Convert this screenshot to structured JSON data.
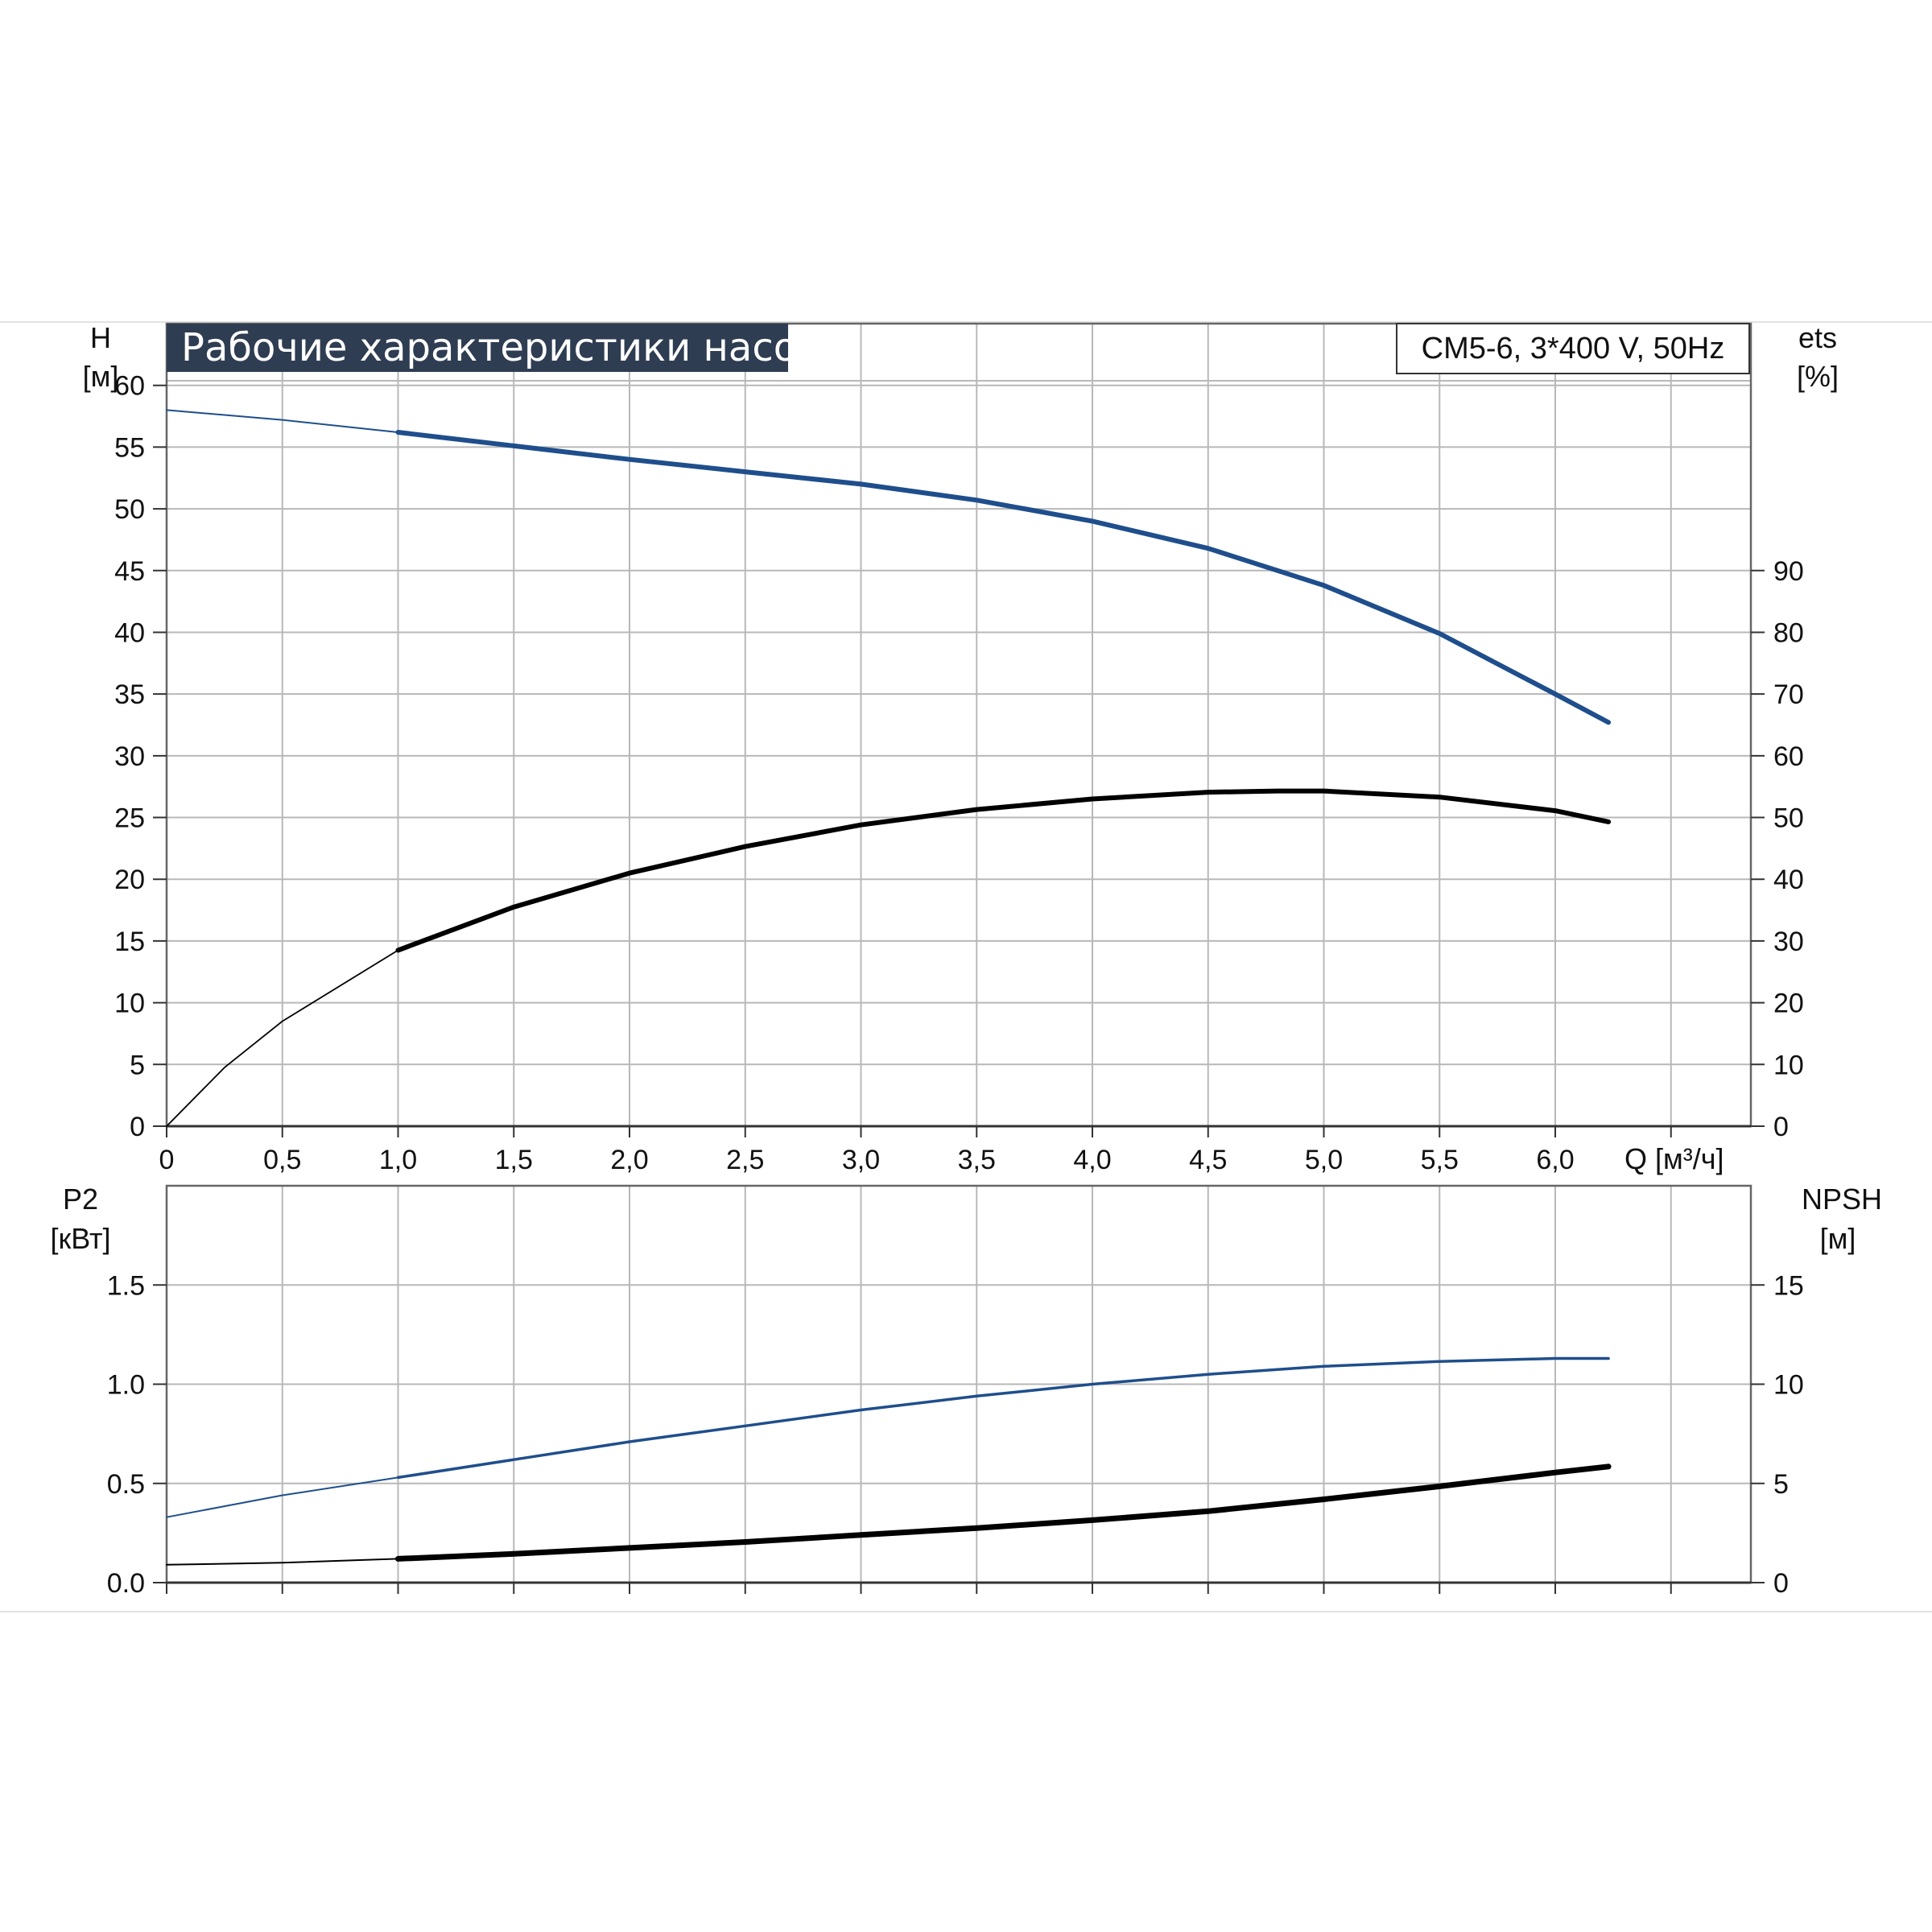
{
  "title": "Рабочие характеристики насоса",
  "model": "CM5-6, 3*400 V, 50Hz",
  "colors": {
    "blue": "#1f4e8c",
    "black": "#000000",
    "grid": "#b8b8b8",
    "title_bg": "#2f3d52"
  },
  "chart_data": [
    {
      "type": "line",
      "panel": "top",
      "xlabel": "Q [м³/ч]",
      "x_ticks": [
        "0",
        "0,5",
        "1,0",
        "1,5",
        "2,0",
        "2,5",
        "3,0",
        "3,5",
        "4,0",
        "4,5",
        "5,0",
        "5,5",
        "6,0"
      ],
      "xlim": [
        0,
        6.85
      ],
      "y_left": {
        "label": "H",
        "unit": "[м]",
        "ylim": [
          0,
          65
        ],
        "ticks": [
          "0",
          "5",
          "10",
          "15",
          "20",
          "25",
          "30",
          "35",
          "40",
          "45",
          "50",
          "55",
          "60"
        ]
      },
      "y_right": {
        "label": "ets",
        "unit": "[%]",
        "ylim": [
          0,
          130
        ],
        "ticks": [
          "0",
          "10",
          "20",
          "30",
          "40",
          "50",
          "60",
          "70",
          "80",
          "90"
        ]
      },
      "grid": true,
      "series": [
        {
          "axis": "left",
          "color": "#1f4e8c",
          "x": [
            0,
            0.5,
            1.0,
            1.5,
            2.0,
            2.5,
            3.0,
            3.5,
            4.0,
            4.5,
            5.0,
            5.5,
            6.0,
            6.23
          ],
          "y": [
            58,
            57.2,
            56.2,
            55.1,
            54,
            53,
            52,
            50.7,
            49,
            46.8,
            43.8,
            39.9,
            35,
            32.7
          ]
        },
        {
          "axis": "right",
          "color": "#000000",
          "x": [
            0,
            0.25,
            0.5,
            1.0,
            1.5,
            2.0,
            2.5,
            3.0,
            3.5,
            4.0,
            4.5,
            4.8,
            5.0,
            5.5,
            6.0,
            6.23
          ],
          "y": [
            0,
            9.5,
            17,
            28.5,
            35.5,
            41,
            45.3,
            48.8,
            51.3,
            53,
            54.1,
            54.3,
            54.3,
            53.3,
            51.1,
            49.3
          ]
        }
      ]
    },
    {
      "type": "line",
      "panel": "bottom",
      "xlim": [
        0,
        6.85
      ],
      "y_left": {
        "label": "P2",
        "unit": "[кВт]",
        "ylim": [
          0,
          2.0
        ],
        "ticks": [
          "0.0",
          "0.5",
          "1.0",
          "1.5"
        ]
      },
      "y_right": {
        "label": "NPSH",
        "unit": "[м]",
        "ylim": [
          0,
          20
        ],
        "ticks": [
          "0",
          "5",
          "10",
          "15"
        ]
      },
      "grid": true,
      "series": [
        {
          "axis": "left",
          "color": "#1f4e8c",
          "x": [
            0,
            0.5,
            1.0,
            1.5,
            2.0,
            2.5,
            3.0,
            3.5,
            4.0,
            4.5,
            5.0,
            5.5,
            6.0,
            6.23
          ],
          "y": [
            0.33,
            0.44,
            0.53,
            0.62,
            0.71,
            0.79,
            0.87,
            0.94,
            1.0,
            1.05,
            1.09,
            1.115,
            1.13,
            1.13
          ]
        },
        {
          "axis": "right",
          "color": "#000000",
          "x": [
            0,
            0.5,
            1.0,
            1.5,
            2.0,
            2.5,
            3.0,
            3.5,
            4.0,
            4.5,
            5.0,
            5.5,
            6.0,
            6.23
          ],
          "y": [
            0.9,
            1.0,
            1.2,
            1.45,
            1.75,
            2.05,
            2.4,
            2.75,
            3.15,
            3.6,
            4.2,
            4.85,
            5.55,
            5.85
          ]
        }
      ]
    }
  ]
}
